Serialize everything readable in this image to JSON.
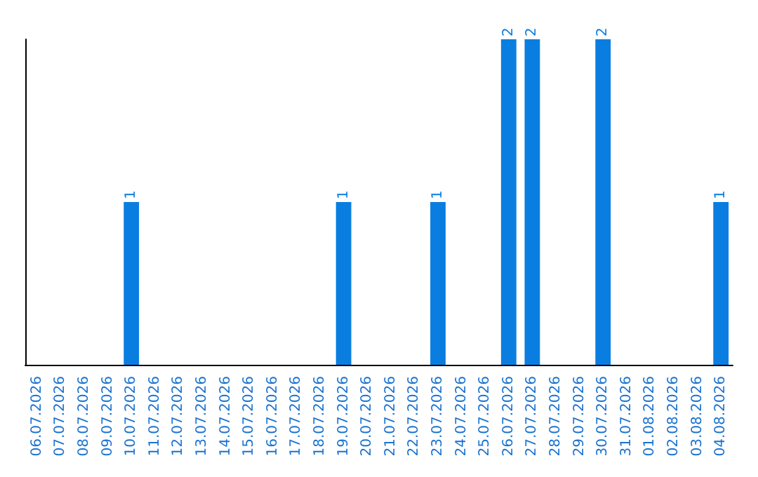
{
  "chart_data": {
    "type": "bar",
    "categories": [
      "06.07.2026",
      "07.07.2026",
      "08.07.2026",
      "09.07.2026",
      "10.07.2026",
      "11.07.2026",
      "12.07.2026",
      "13.07.2026",
      "14.07.2026",
      "15.07.2026",
      "16.07.2026",
      "17.07.2026",
      "18.07.2026",
      "19.07.2026",
      "20.07.2026",
      "21.07.2026",
      "22.07.2026",
      "23.07.2026",
      "24.07.2026",
      "25.07.2026",
      "26.07.2026",
      "27.07.2026",
      "28.07.2026",
      "29.07.2026",
      "30.07.2026",
      "31.07.2026",
      "01.08.2026",
      "02.08.2026",
      "03.08.2026",
      "04.08.2026"
    ],
    "values": [
      0,
      0,
      0,
      0,
      1,
      0,
      0,
      0,
      0,
      0,
      0,
      0,
      0,
      1,
      0,
      0,
      0,
      1,
      0,
      0,
      2,
      2,
      0,
      0,
      2,
      0,
      0,
      0,
      0,
      1
    ],
    "value_labels": [
      null,
      null,
      null,
      null,
      "1",
      null,
      null,
      null,
      null,
      null,
      null,
      null,
      null,
      "1",
      null,
      null,
      null,
      "1",
      null,
      null,
      "2",
      "2",
      null,
      null,
      "2",
      null,
      null,
      null,
      null,
      "1"
    ],
    "color": "#0a7ee0",
    "tick_labels": "x"
  }
}
